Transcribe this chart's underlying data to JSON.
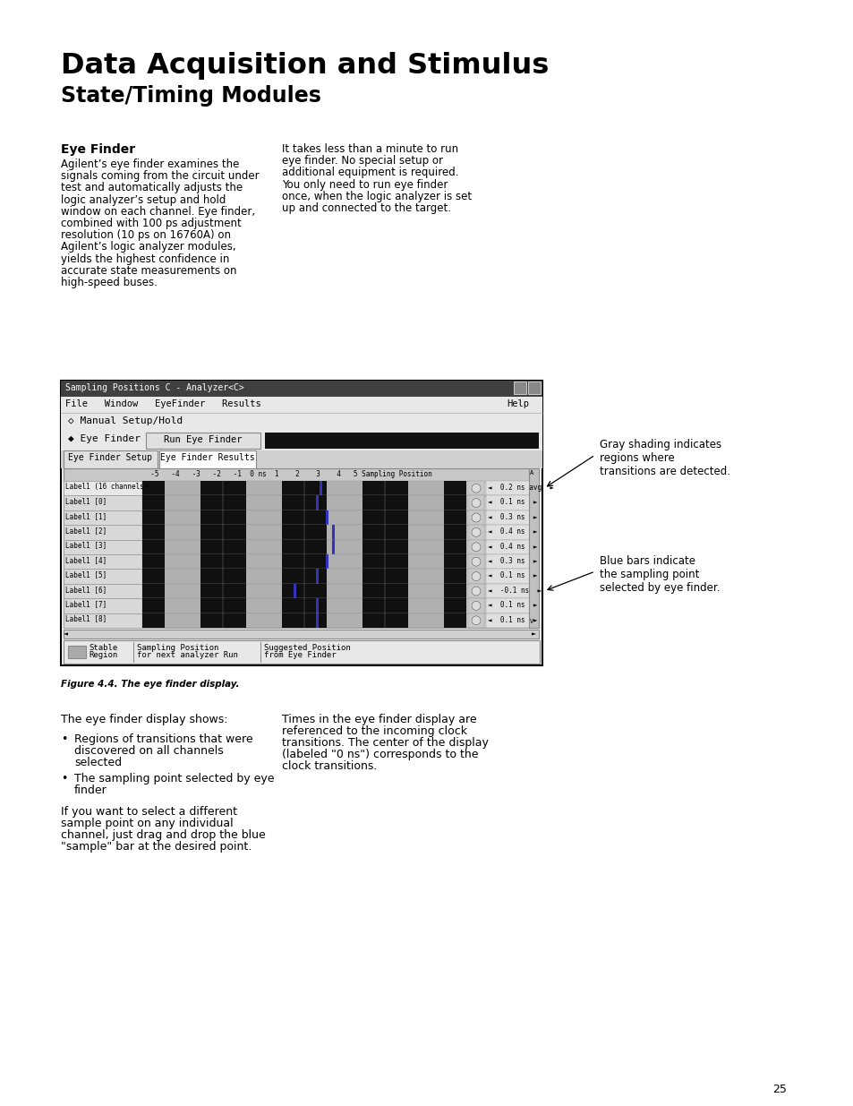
{
  "title_line1": "Data Acquisition and Stimulus",
  "title_line2": "State/Timing Modules",
  "section_title": "Eye Finder",
  "left_col_para": "Agilent’s eye finder examines the\nsignals coming from the circuit under\ntest and automatically adjusts the\nlogic analyzer’s setup and hold\nwindow on each channel. Eye finder,\ncombined with 100 ps adjustment\nresolution (10 ps on 16760A) on\nAgilent’s logic analyzer modules,\nyields the highest confidence in\naccurate state measurements on\nhigh-speed buses.",
  "right_col_para": "It takes less than a minute to run\neye finder. No special setup or\nadditional equipment is required.\nYou only need to run eye finder\nonce, when the logic analyzer is set\nup and connected to the target.",
  "annotation1_title": "Gray shading indicates\nregions where\ntransitions are detected.",
  "annotation2_title": "Blue bars indicate\nthe sampling point\nselected by eye finder.",
  "figure_caption": "Figure 4.4. The eye finder display.",
  "bottom_para1": "The eye finder display shows:",
  "bottom_bullet1a": "Regions of transitions that were",
  "bottom_bullet1b": "discovered on all channels",
  "bottom_bullet1c": "selected",
  "bottom_bullet2a": "The sampling point selected by eye",
  "bottom_bullet2b": "finder",
  "bottom_para2a": "If you want to select a different",
  "bottom_para2b": "sample point on any individual",
  "bottom_para2c": "channel, just drag and drop the blue",
  "bottom_para2d": "\"sample\" bar at the desired point.",
  "bottom_right_para": "Times in the eye finder display are\nreferenced to the incoming clock\ntransitions. The center of the display\n(labeled \"0 ns\") corresponds to the\nclock transitions.",
  "page_number": "25",
  "bg_color": "#ffffff",
  "text_color": "#000000"
}
